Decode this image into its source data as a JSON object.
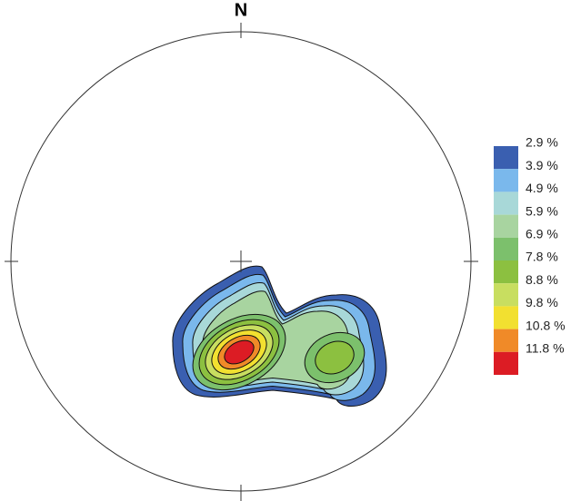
{
  "chart_data": {
    "type": "contour",
    "title": "N",
    "levels": [
      {
        "value": 2.9,
        "label": "2.9 %"
      },
      {
        "value": 3.9,
        "label": "3.9 %"
      },
      {
        "value": 4.9,
        "label": "4.9 %"
      },
      {
        "value": 5.9,
        "label": "5.9 %"
      },
      {
        "value": 6.9,
        "label": "6.9 %"
      },
      {
        "value": 7.8,
        "label": "7.8 %"
      },
      {
        "value": 8.8,
        "label": "8.8 %"
      },
      {
        "value": 9.8,
        "label": "9.8 %"
      },
      {
        "value": 10.8,
        "label": "10.8 %"
      },
      {
        "value": 11.8,
        "label": "11.8 %"
      }
    ],
    "colors": [
      "#3a5fb0",
      "#7ab8ec",
      "#a8d8d8",
      "#a8d4a0",
      "#7cc06c",
      "#8cc040",
      "#c8de60",
      "#f2e030",
      "#f08a28",
      "#dc1c24"
    ]
  }
}
